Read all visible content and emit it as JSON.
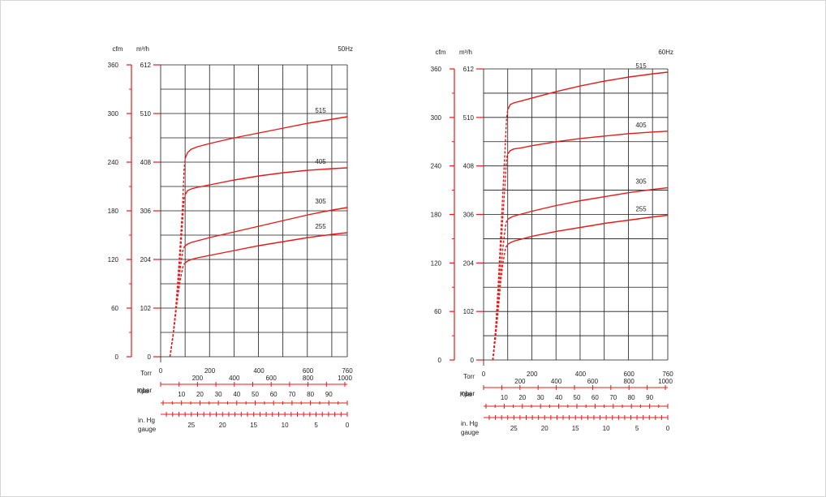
{
  "colors": {
    "curve": "#e81919",
    "grid": "#1a1a1a",
    "scale": "#e81919",
    "text": "#222222"
  },
  "labels": {
    "cfm": "cfm",
    "m3h": "m³/h",
    "torr": "Torr",
    "mbar": "mbar",
    "kpa": "Kpa",
    "inhg_line1": "in. Hg",
    "inhg_line2": "gauge"
  },
  "chart_data": [
    {
      "type": "line",
      "title": "50Hz",
      "xlabel": "Torr",
      "xlim": [
        0,
        760
      ],
      "x_ticks": [
        "0",
        "200",
        "400",
        "600",
        "760"
      ],
      "ylabel_left": "cfm",
      "ylabel_right": "m³/h",
      "ylim": [
        0,
        360
      ],
      "y_ticks": [
        "0",
        "60",
        "120",
        "180",
        "240",
        "300",
        "360"
      ],
      "y2_ticks": [
        "0",
        "102",
        "204",
        "306",
        "408",
        "510",
        "612"
      ],
      "mbar_ticks": [
        "200",
        "400",
        "600",
        "800",
        "1000"
      ],
      "kpa_ticks": [
        "90",
        "80",
        "70",
        "60",
        "50",
        "40",
        "30",
        "20",
        "10"
      ],
      "inhg_ticks": [
        "25",
        "20",
        "15",
        "10",
        "5",
        "0"
      ],
      "grid": true,
      "series": [
        {
          "name": "515",
          "x": [
            38,
            50,
            60,
            70,
            80,
            90,
            95,
            100,
            110,
            125,
            150,
            200,
            300,
            400,
            500,
            600,
            700,
            760
          ],
          "y": [
            0,
            25,
            55,
            95,
            140,
            190,
            230,
            245,
            252,
            256,
            259,
            263,
            270,
            276,
            282,
            288,
            293,
            296
          ]
        },
        {
          "name": "405",
          "x": [
            38,
            50,
            60,
            70,
            80,
            90,
            95,
            100,
            110,
            125,
            150,
            200,
            300,
            400,
            500,
            600,
            700,
            760
          ],
          "y": [
            0,
            25,
            50,
            85,
            125,
            170,
            195,
            200,
            205,
            207,
            209,
            212,
            218,
            223,
            227,
            230,
            232,
            233
          ]
        },
        {
          "name": "305",
          "x": [
            38,
            50,
            60,
            70,
            80,
            90,
            95,
            100,
            110,
            125,
            150,
            200,
            300,
            400,
            500,
            600,
            700,
            760
          ],
          "y": [
            0,
            25,
            50,
            80,
            110,
            130,
            135,
            137,
            139,
            141,
            143,
            147,
            154,
            161,
            168,
            175,
            181,
            184
          ]
        },
        {
          "name": "255",
          "x": [
            38,
            50,
            60,
            70,
            80,
            90,
            95,
            100,
            110,
            125,
            150,
            200,
            300,
            400,
            500,
            600,
            700,
            760
          ],
          "y": [
            0,
            25,
            50,
            75,
            95,
            110,
            114,
            116,
            118,
            120,
            122,
            125,
            131,
            137,
            142,
            147,
            151,
            153
          ]
        }
      ]
    },
    {
      "type": "line",
      "title": "60Hz",
      "xlabel": "Torr",
      "xlim": [
        0,
        760
      ],
      "x_ticks": [
        "0",
        "200",
        "400",
        "600",
        "760"
      ],
      "ylabel_left": "cfm",
      "ylabel_right": "m³/h",
      "ylim": [
        0,
        360
      ],
      "y_ticks": [
        "0",
        "60",
        "120",
        "180",
        "240",
        "300",
        "360"
      ],
      "y2_ticks": [
        "0",
        "102",
        "204",
        "306",
        "408",
        "510",
        "612"
      ],
      "mbar_ticks": [
        "200",
        "400",
        "600",
        "800",
        "1000"
      ],
      "kpa_ticks": [
        "90",
        "80",
        "70",
        "60",
        "50",
        "40",
        "30",
        "20",
        "10"
      ],
      "inhg_ticks": [
        "25",
        "20",
        "15",
        "10",
        "5",
        "0"
      ],
      "grid": true,
      "series": [
        {
          "name": "515",
          "x": [
            38,
            50,
            60,
            70,
            80,
            90,
            95,
            100,
            110,
            125,
            150,
            200,
            300,
            400,
            500,
            600,
            700,
            760
          ],
          "y": [
            0,
            40,
            90,
            150,
            210,
            270,
            300,
            310,
            316,
            318,
            320,
            324,
            332,
            339,
            345,
            350,
            354,
            356
          ]
        },
        {
          "name": "405",
          "x": [
            38,
            50,
            60,
            70,
            80,
            90,
            95,
            100,
            110,
            125,
            150,
            200,
            300,
            400,
            500,
            600,
            700,
            760
          ],
          "y": [
            0,
            35,
            80,
            130,
            180,
            225,
            250,
            255,
            259,
            261,
            262,
            265,
            270,
            274,
            277,
            280,
            282,
            283
          ]
        },
        {
          "name": "305",
          "x": [
            38,
            50,
            60,
            70,
            80,
            90,
            95,
            100,
            110,
            125,
            150,
            200,
            300,
            400,
            500,
            600,
            700,
            760
          ],
          "y": [
            0,
            30,
            65,
            105,
            140,
            165,
            172,
            174,
            176,
            178,
            180,
            184,
            191,
            197,
            202,
            207,
            211,
            213
          ]
        },
        {
          "name": "255",
          "x": [
            38,
            50,
            60,
            70,
            80,
            90,
            95,
            100,
            110,
            125,
            150,
            200,
            300,
            400,
            500,
            600,
            700,
            760
          ],
          "y": [
            0,
            30,
            60,
            95,
            120,
            138,
            141,
            143,
            145,
            147,
            149,
            153,
            159,
            164,
            169,
            173,
            177,
            179
          ]
        }
      ]
    }
  ]
}
